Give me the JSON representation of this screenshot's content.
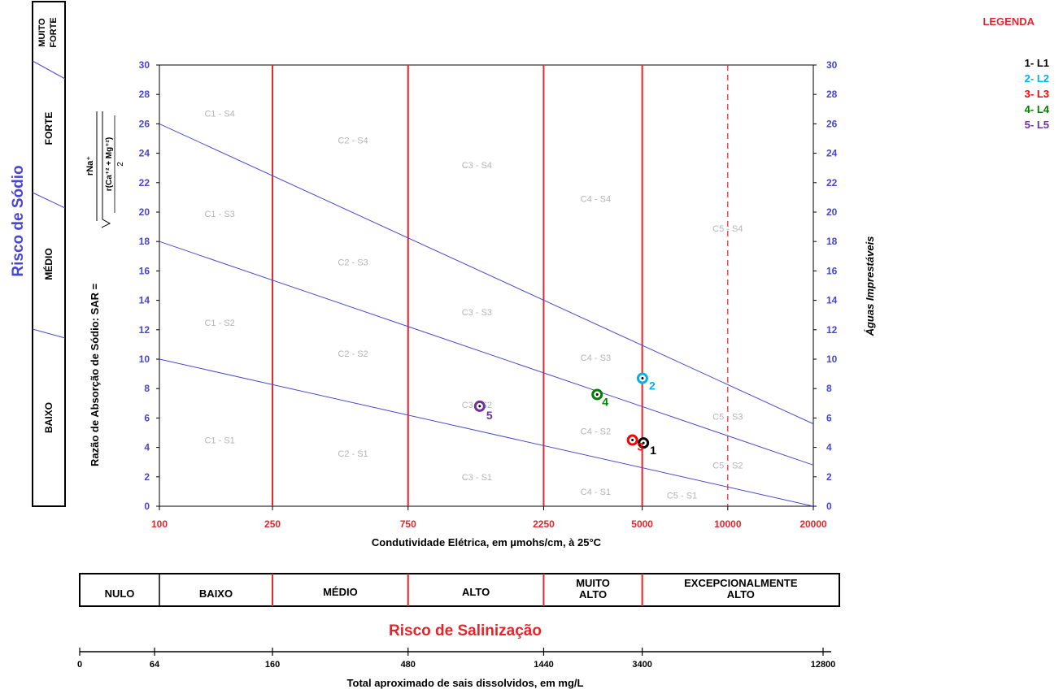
{
  "chart_data": {
    "type": "scatter",
    "xscale": "log",
    "x_ticks": [
      {
        "value": 100,
        "label": "100"
      },
      {
        "value": 250,
        "label": "250"
      },
      {
        "value": 750,
        "label": "750"
      },
      {
        "value": 2250,
        "label": "2250"
      },
      {
        "value": 5000,
        "label": "5000"
      },
      {
        "value": 10000,
        "label": "10000"
      },
      {
        "value": 20000,
        "label": "20000"
      }
    ],
    "xlim": [
      100,
      20000
    ],
    "ylim": [
      0,
      30
    ],
    "y_ticks": [
      0,
      2,
      4,
      6,
      8,
      10,
      12,
      14,
      16,
      18,
      20,
      22,
      24,
      26,
      28,
      30
    ],
    "xlabel": "Condutividade Elétrica, em µmohs/cm, à 25°C",
    "ylabel_prefix": "Razão de Absorção de Sódio:  SAR  =",
    "sar_formula": {
      "numerator": "rNa⁺",
      "denominator_top": "r(Ca⁺² + Mg⁺²)",
      "denominator_bottom": "2"
    },
    "right_ylabel": "Águas Imprestáveis",
    "boundary_lines": [
      {
        "name": "S1/S2",
        "x": [
          100,
          20000
        ],
        "y": [
          10,
          0
        ]
      },
      {
        "name": "S2/S3",
        "x": [
          100,
          20000
        ],
        "y": [
          18,
          2.8
        ]
      },
      {
        "name": "S3/S4",
        "x": [
          100,
          20000
        ],
        "y": [
          26,
          5.6
        ]
      }
    ],
    "vertical_lines": [
      {
        "x": 250,
        "style": "solid"
      },
      {
        "x": 750,
        "style": "solid"
      },
      {
        "x": 2250,
        "style": "solid"
      },
      {
        "x": 5000,
        "style": "solid"
      },
      {
        "x": 10000,
        "style": "dashed"
      }
    ],
    "region_labels": [
      {
        "text": "C1 - S4",
        "x": 163,
        "y": 26.7
      },
      {
        "text": "C1 - S3",
        "x": 163,
        "y": 19.9
      },
      {
        "text": "C1 - S2",
        "x": 163,
        "y": 12.5
      },
      {
        "text": "C1 - S1",
        "x": 163,
        "y": 4.5
      },
      {
        "text": "C2 - S4",
        "x": 480,
        "y": 24.9
      },
      {
        "text": "C2 - S3",
        "x": 480,
        "y": 16.6
      },
      {
        "text": "C2 - S2",
        "x": 480,
        "y": 10.4
      },
      {
        "text": "C2 - S1",
        "x": 480,
        "y": 3.6
      },
      {
        "text": "C3 - S4",
        "x": 1310,
        "y": 23.2
      },
      {
        "text": "C3 - S3",
        "x": 1310,
        "y": 13.2
      },
      {
        "text": "C3 - S2",
        "x": 1310,
        "y": 6.9
      },
      {
        "text": "C3 - S1",
        "x": 1310,
        "y": 2.0
      },
      {
        "text": "C4 - S4",
        "x": 3430,
        "y": 20.9
      },
      {
        "text": "C4 - S3",
        "x": 3430,
        "y": 10.1
      },
      {
        "text": "C4 - S2",
        "x": 3430,
        "y": 5.1
      },
      {
        "text": "C4 - S1",
        "x": 3430,
        "y": 1.0
      },
      {
        "text": "C5 - S4",
        "x": 10000,
        "y": 18.9
      },
      {
        "text": "C5 - S3",
        "x": 10000,
        "y": 6.1
      },
      {
        "text": "C5 - S2",
        "x": 10000,
        "y": 2.8
      },
      {
        "text": "C5 - S1",
        "x": 6900,
        "y": 0.75
      }
    ],
    "series": [
      {
        "name": "1- L1",
        "color": "#000000",
        "points": [
          {
            "x": 5050,
            "y": 4.3,
            "label": "1"
          }
        ]
      },
      {
        "name": "2- L2",
        "color": "#00b0f0",
        "points": [
          {
            "x": 5010,
            "y": 8.7,
            "label": "2"
          }
        ]
      },
      {
        "name": "3- L3",
        "color": "#ff0000",
        "points": [
          {
            "x": 4620,
            "y": 4.5,
            "label": "3"
          }
        ]
      },
      {
        "name": "4- L4",
        "color": "#008000",
        "points": [
          {
            "x": 3470,
            "y": 7.6,
            "label": "4"
          }
        ]
      },
      {
        "name": "5- L5",
        "color": "#7030a0",
        "points": [
          {
            "x": 1340,
            "y": 6.8,
            "label": "5"
          }
        ]
      }
    ]
  },
  "sodium_risk": {
    "title": "Risco de Sódio",
    "levels": [
      "BAIXO",
      "MÉDIO",
      "FORTE",
      "MUITO FORTE"
    ]
  },
  "salinity_risk": {
    "title": "Risco de Salinização",
    "levels": [
      "NULO",
      "BAIXO",
      "MÉDIO",
      "ALTO",
      "MUITO ALTO",
      "EXCEPCIONALMENTE ALTO"
    ]
  },
  "tds_scale": {
    "ticks": [
      "0",
      "64",
      "160",
      "480",
      "1440",
      "3400",
      "12800"
    ],
    "label": "Total aproximado de sais dissolvidos, em mg/L"
  },
  "legend": {
    "title": "LEGENDA"
  },
  "colors": {
    "axis_blue": "#4646d2",
    "boundary_blue": "#4a4acf",
    "red": "#e3262c",
    "region_gray": "#b4b4b4",
    "black": "#000000"
  }
}
